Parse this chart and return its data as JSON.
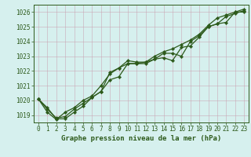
{
  "title": "Graphe pression niveau de la mer (hPa)",
  "background_color": "#d6f0ee",
  "plot_bg_color": "#d6f0ee",
  "grid_color": "#b8ddd8",
  "line_color": "#2d5a1b",
  "xlim": [
    -0.5,
    23.5
  ],
  "ylim": [
    1018.5,
    1026.5
  ],
  "yticks": [
    1019,
    1020,
    1021,
    1022,
    1023,
    1024,
    1025,
    1026
  ],
  "xticks": [
    0,
    1,
    2,
    3,
    4,
    5,
    6,
    7,
    8,
    9,
    10,
    11,
    12,
    13,
    14,
    15,
    16,
    17,
    18,
    19,
    20,
    21,
    22,
    23
  ],
  "series": [
    [
      1020.1,
      1019.4,
      1018.8,
      1018.9,
      1019.4,
      1019.8,
      1020.2,
      1020.6,
      1021.9,
      1022.2,
      1022.7,
      1022.6,
      1022.6,
      1022.8,
      1023.2,
      1023.2,
      1023.0,
      1024.0,
      1024.4,
      1025.0,
      1025.2,
      1025.7,
      1025.9,
      1026.1
    ],
    [
      1020.1,
      1019.5,
      1018.75,
      1018.75,
      1019.2,
      1019.6,
      1020.2,
      1020.6,
      1021.4,
      1021.6,
      1022.5,
      1022.5,
      1022.5,
      1022.8,
      1022.9,
      1022.7,
      1023.6,
      1023.7,
      1024.3,
      1025.0,
      1025.2,
      1025.3,
      1026.0,
      1026.0
    ],
    [
      1020.1,
      1019.2,
      1018.7,
      1019.2,
      1019.5,
      1020.0,
      1020.3,
      1021.0,
      1021.8,
      1022.2,
      1022.5,
      1022.5,
      1022.6,
      1023.0,
      1023.3,
      1023.5,
      1023.8,
      1024.1,
      1024.5,
      1025.1,
      1025.6,
      1025.8,
      1026.0,
      1026.2
    ]
  ],
  "tick_fontsize": 5.5,
  "label_fontsize": 6.5,
  "line_width": 0.9,
  "marker_size": 2.2
}
